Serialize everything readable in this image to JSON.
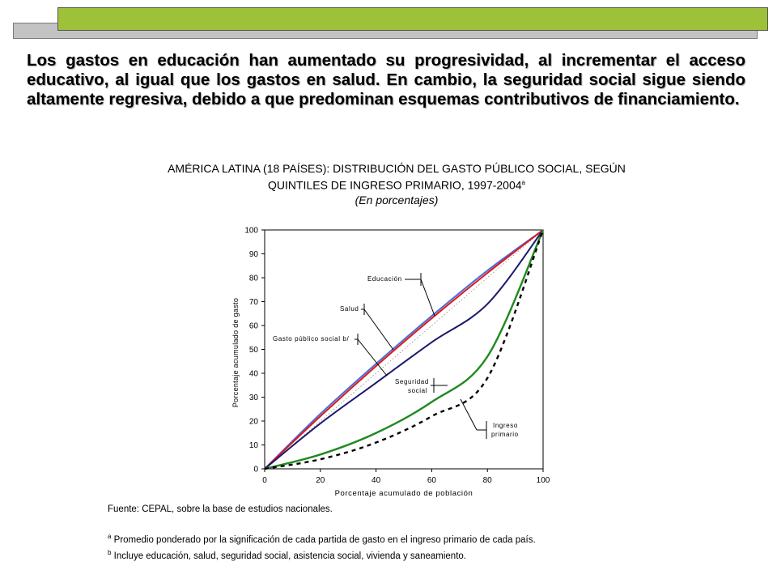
{
  "intro_text": "Los gastos en educación han aumentado su progresividad, al incrementar el acceso educativo, al igual que los gastos en salud. En cambio, la seguridad social sigue siendo altamente regresiva, debido a que predominan esquemas contributivos de financiamiento.",
  "chart_heading": {
    "line1": "AMÉRICA LATINA (18 PAÍSES): DISTRIBUCIÓN DEL GASTO PÚBLICO SOCIAL, SEGÚN",
    "line2": "QUINTILES DE INGRESO PRIMARIO, 1997-2004",
    "line2_sup": "a",
    "subtitle": "(En porcentajes)"
  },
  "footer": {
    "source": "Fuente: CEPAL, sobre la base de estudios nacionales.",
    "note_a_marker": "a",
    "note_a": " Promedio ponderado por la significación de cada partida de gasto en el ingreso primario de cada país.",
    "note_b_marker": "b",
    "note_b": " Incluye educación, salud, seguridad social, asistencia social, vivienda y saneamiento."
  },
  "chart_data": {
    "type": "line",
    "title": "AMÉRICA LATINA (18 PAÍSES): DISTRIBUCIÓN DEL GASTO PÚBLICO SOCIAL, SEGÚN QUINTILES DE INGRESO PRIMARIO, 1997-2004",
    "xlabel": "Porcentaje acumulado de población",
    "ylabel": "Porcentaje acumulado de gasto",
    "xlim": [
      0,
      100
    ],
    "ylim": [
      0,
      100
    ],
    "xticks": [
      0,
      20,
      40,
      60,
      80,
      100
    ],
    "yticks": [
      0,
      10,
      20,
      30,
      40,
      50,
      60,
      70,
      80,
      90,
      100
    ],
    "x": [
      0,
      20,
      40,
      60,
      80,
      100
    ],
    "series": [
      {
        "name": "Educación",
        "key": "educacion",
        "color": "#4a6cd8",
        "style": "solid",
        "values": [
          0,
          23,
          44,
          64,
          83,
          100
        ]
      },
      {
        "name": "Salud",
        "key": "salud",
        "color": "#e01818",
        "style": "solid",
        "values": [
          0,
          22,
          43,
          63,
          82,
          100
        ]
      },
      {
        "name": "Gasto público social b/",
        "key": "gasto",
        "color": "#1a1a70",
        "style": "solid",
        "values": [
          0,
          19,
          36,
          53,
          69,
          100
        ]
      },
      {
        "name": "Seguridad social",
        "key": "seguridad",
        "color": "#1e8a1e",
        "style": "solid",
        "values": [
          0,
          6,
          15,
          28,
          47,
          100
        ]
      },
      {
        "name": "Ingreso primario",
        "key": "ingreso",
        "color": "#000000",
        "style": "dashed",
        "values": [
          0,
          4,
          11,
          22,
          38,
          100
        ]
      }
    ],
    "reference_line": {
      "name": "equidistribución",
      "values": [
        0,
        100
      ]
    },
    "annotations": {
      "educacion": "Educación",
      "salud": "Salud",
      "gasto": "Gasto público social b/",
      "seguridad_line1": "Seguridad",
      "seguridad_line2": "social",
      "ingreso_line1": "Ingreso",
      "ingreso_line2": "primario"
    }
  }
}
